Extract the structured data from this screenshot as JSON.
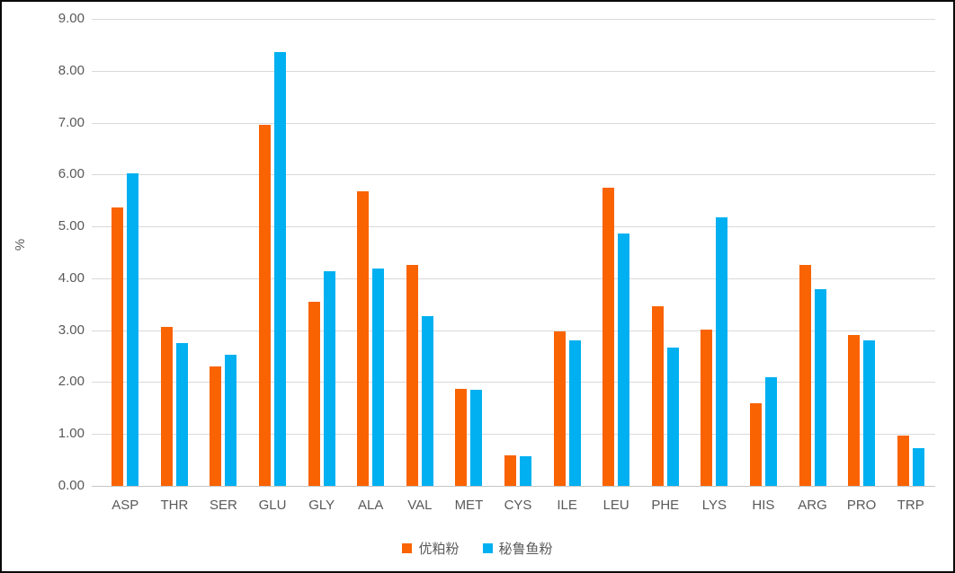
{
  "chart_data": {
    "type": "bar",
    "title": "",
    "xlabel": "",
    "ylabel": "%",
    "ylim": [
      0,
      9
    ],
    "ytick_step": 1,
    "yticks": [
      "0.00",
      "1.00",
      "2.00",
      "3.00",
      "4.00",
      "5.00",
      "6.00",
      "7.00",
      "8.00",
      "9.00"
    ],
    "grid": "horizontal",
    "legend_position": "bottom",
    "categories": [
      "ASP",
      "THR",
      "SER",
      "GLU",
      "GLY",
      "ALA",
      "VAL",
      "MET",
      "CYS",
      "ILE",
      "LEU",
      "PHE",
      "LYS",
      "HIS",
      "ARG",
      "PRO",
      "TRP"
    ],
    "series": [
      {
        "name": "优粕粉",
        "color": "#f96302",
        "values": [
          5.37,
          3.06,
          2.31,
          6.96,
          3.55,
          5.67,
          4.26,
          1.87,
          0.58,
          2.98,
          5.75,
          3.47,
          3.02,
          1.59,
          4.26,
          2.91,
          0.97
        ]
      },
      {
        "name": "秘鲁鱼粉",
        "color": "#00b0f0",
        "values": [
          6.03,
          2.76,
          2.52,
          8.36,
          4.14,
          4.19,
          3.27,
          1.85,
          0.57,
          2.8,
          4.86,
          2.66,
          5.17,
          2.1,
          3.79,
          2.8,
          0.73
        ]
      }
    ],
    "colors": {
      "gridline": "#d9d9d9",
      "axis_text": "#595959",
      "background": "#ffffff",
      "border": "#000000"
    }
  }
}
